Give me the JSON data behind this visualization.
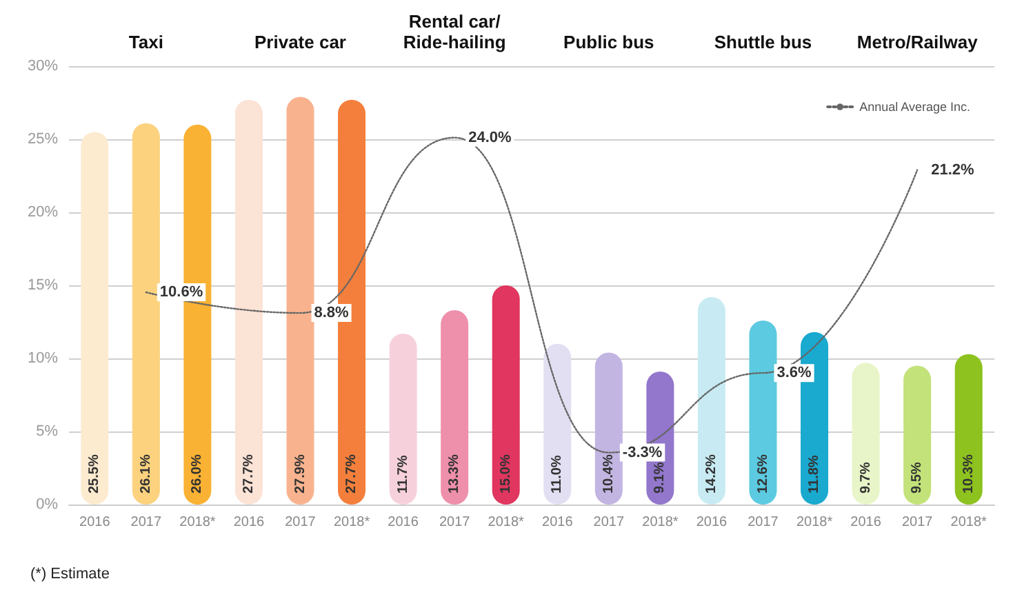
{
  "chart_data": {
    "type": "bar",
    "categories": [
      "2016",
      "2017",
      "2018*",
      "2016",
      "2017",
      "2018*",
      "2016",
      "2017",
      "2018*",
      "2016",
      "2017",
      "2018*",
      "2016",
      "2017",
      "2018*",
      "2016",
      "2017",
      "2018*"
    ],
    "series": [
      {
        "values": [
          25.5,
          26.1,
          26.0,
          27.7,
          27.9,
          27.7,
          11.7,
          13.3,
          15.0,
          11.0,
          10.4,
          9.1,
          14.2,
          12.6,
          11.8,
          9.7,
          9.5,
          10.3
        ],
        "value_labels": [
          "25.5%",
          "26.1%",
          "26.0%",
          "27.7%",
          "27.9%",
          "27.7%",
          "11.7%",
          "13.3%",
          "15.0%",
          "11.0%",
          "10.4%",
          "9.1%",
          "14.2%",
          "12.6%",
          "11.8%",
          "9.7%",
          "9.5%",
          "10.3%"
        ],
        "colors": [
          "#fdebd0",
          "#fcd27e",
          "#f9b233",
          "#fbe3d6",
          "#f8b38e",
          "#f47f3c",
          "#f6d1dc",
          "#ee8fab",
          "#e0365f",
          "#e3dff2",
          "#c3b5e2",
          "#9277cc",
          "#c8ebf3",
          "#5ccae0",
          "#1aa9cf",
          "#e8f5c8",
          "#c3e27a",
          "#8dc21f"
        ]
      },
      {
        "type": "line",
        "axis": "y2",
        "name": "Annual Average Inc.",
        "color": "#666666",
        "line_style": "dotted",
        "marker": "none",
        "values": [
          null,
          10.6,
          null,
          null,
          8.8,
          null,
          null,
          24.0,
          null,
          null,
          -3.3,
          null,
          null,
          3.6,
          null,
          null,
          21.2,
          null
        ],
        "value_labels": [
          null,
          "10.6%",
          null,
          null,
          "8.8%",
          null,
          null,
          "24.0%",
          null,
          null,
          "-3.3%",
          null,
          null,
          "3.6%",
          null,
          null,
          "21.2%",
          null
        ]
      }
    ],
    "ylim": [
      0,
      30
    ],
    "yticks": [
      {
        "value": 0,
        "label": "0%"
      },
      {
        "value": 5,
        "label": "5%"
      },
      {
        "value": 10,
        "label": "10%"
      },
      {
        "value": 15,
        "label": "15%"
      },
      {
        "value": 20,
        "label": "20%"
      },
      {
        "value": 25,
        "label": "25%"
      },
      {
        "value": 30,
        "label": "30%"
      }
    ],
    "grid": "y",
    "legend": "top right",
    "annotations": [
      "Taxi",
      "Private car",
      "Rental car/\nRide-hailing",
      "Public bus",
      "Shuttle bus",
      "Metro/Railway",
      "(*) Estimate"
    ]
  }
}
